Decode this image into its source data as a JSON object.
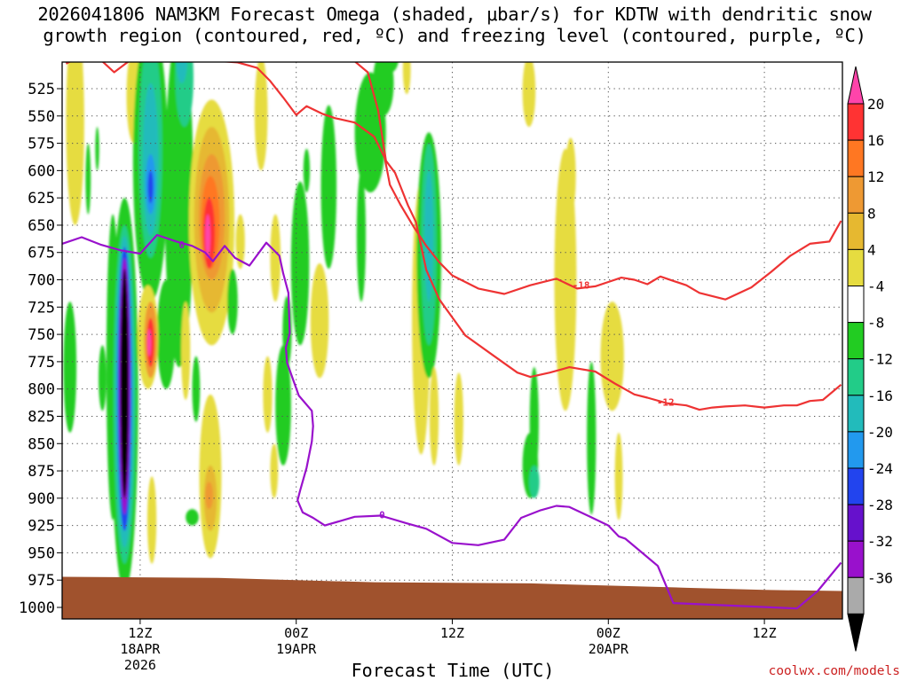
{
  "title_line1": "2026041806 NAM3KM Forecast Omega (shaded, μbar/s) for KDTW with dendritic snow",
  "title_line2": "growth region (contoured, red, ºC) and freezing level (contoured, purple, ºC)",
  "credit": "coolwx.com/models",
  "chart_data": {
    "type": "contour",
    "title": "2026041806 NAM3KM Forecast Omega (shaded, μbar/s) for KDTW with dendritic snow growth region (contoured, red, ºC) and freezing level (contoured, purple, ºC)",
    "xlabel": "Forecast Time (UTC)",
    "ylabel": "",
    "y_ticks": [
      525,
      550,
      575,
      600,
      625,
      650,
      675,
      700,
      725,
      750,
      775,
      800,
      825,
      850,
      875,
      900,
      925,
      950,
      975,
      1000
    ],
    "y_range_hpa": [
      1000,
      500
    ],
    "x_range_hours": [
      6,
      66
    ],
    "x_ticks": [
      {
        "hour": 12,
        "label": "12Z",
        "sub1": "18APR",
        "sub2": "2026"
      },
      {
        "hour": 24,
        "label": "00Z",
        "sub1": "19APR",
        "sub2": ""
      },
      {
        "hour": 36,
        "label": "12Z",
        "sub1": "",
        "sub2": ""
      },
      {
        "hour": 48,
        "label": "00Z",
        "sub1": "20APR",
        "sub2": ""
      },
      {
        "hour": 60,
        "label": "12Z",
        "sub1": "",
        "sub2": ""
      }
    ],
    "grid": true,
    "colorbar": {
      "labels": [
        "20",
        "16",
        "12",
        "8",
        "4",
        "-4",
        "-8",
        "-12",
        "-16",
        "-20",
        "-24",
        "-28",
        "-32",
        "-36"
      ],
      "colors": [
        "#ff44aa",
        "#ff3333",
        "#ff7722",
        "#ee9933",
        "#e6b830",
        "#e6dc40",
        "#ffffff",
        "#22cc22",
        "#22cc88",
        "#22bbbb",
        "#2299ee",
        "#2244ee",
        "#6611cc",
        "#9911cc",
        "#aaaaaa",
        "#000000"
      ]
    },
    "contour_labels": [
      {
        "text": "-18",
        "color": "#ee3333",
        "hour": 45.9,
        "hpa": 705
      },
      {
        "text": "-12",
        "color": "#ee3333",
        "hour": 52.4,
        "hpa": 812
      },
      {
        "text": "0",
        "color": "#9911cc",
        "hour": 15.2,
        "hpa": 668
      },
      {
        "text": "0",
        "color": "#9911cc",
        "hour": 30.6,
        "hpa": 915
      }
    ],
    "series": [
      {
        "name": "-18",
        "color": "#ee3333",
        "x": [
          6.3,
          7.5,
          9,
          10,
          12,
          14,
          15.5,
          17,
          18.3,
          19.5,
          21,
          22,
          23,
          24,
          24.8,
          26,
          27,
          28.5,
          30,
          30.8,
          31.2,
          32,
          33,
          34,
          35,
          36,
          38,
          40,
          42,
          44,
          45.6,
          47,
          48,
          49,
          50,
          51,
          52,
          53,
          54,
          55,
          57,
          59,
          60.5,
          62,
          63.5,
          65,
          65.9
        ],
        "y": [
          502,
          495,
          499,
          510,
          492,
          494,
          499,
          493,
          500,
          501,
          506,
          518,
          533,
          549,
          541,
          548,
          552,
          556,
          569,
          588,
          613,
          631,
          651,
          669,
          684,
          696,
          708,
          713,
          705,
          699,
          708,
          706,
          702,
          698,
          700,
          704,
          697,
          701,
          705,
          712,
          718,
          707,
          693,
          678,
          667,
          665,
          646
        ]
      },
      {
        "name": "-12",
        "color": "#ee3333",
        "x": [
          28.5,
          29.5,
          30.3,
          30.9,
          31.6,
          32,
          32.6,
          33.2,
          34,
          35,
          37,
          39,
          41,
          42,
          43.5,
          45,
          47,
          48.5,
          50,
          51,
          52.5,
          54,
          55,
          56,
          57,
          58.5,
          60,
          61.5,
          62.5,
          63.5,
          64.5,
          65.9
        ],
        "y": [
          500,
          510,
          545,
          591,
          602,
          614,
          632,
          647,
          691,
          718,
          751,
          768,
          785,
          789,
          785,
          780,
          784,
          795,
          805,
          808,
          813,
          815,
          819,
          817,
          816,
          815,
          817,
          815,
          815,
          811,
          810,
          796
        ]
      },
      {
        "name": "0",
        "color": "#9911cc",
        "x": [
          6,
          7.5,
          9,
          10.5,
          12,
          13.3,
          14.8,
          16,
          17,
          17.6,
          18.5,
          19.3,
          20.4,
          21.7,
          22.7,
          23,
          23.4,
          23.5,
          23.2,
          23.3,
          24.2,
          25.2,
          25.3,
          25.2,
          24.8,
          24.3,
          24.1,
          24.5,
          25.3,
          26.2,
          28.5,
          30.5,
          32.5,
          34,
          36,
          38,
          40,
          41.3,
          42.8,
          44,
          45,
          46.6,
          48,
          48.8,
          49.3,
          50,
          51.8,
          53,
          62.5,
          64.1,
          65.9
        ],
        "y": [
          667,
          661,
          668,
          673,
          676,
          659,
          665,
          669,
          675,
          683,
          669,
          680,
          687,
          666,
          678,
          694,
          712,
          749,
          762,
          776,
          806,
          820,
          834,
          848,
          872,
          893,
          902,
          913,
          918,
          925,
          917,
          916,
          923,
          928,
          941,
          943,
          938,
          918,
          911,
          907,
          908,
          917,
          925,
          935,
          937,
          944,
          962,
          996,
          1001,
          985,
          959
        ]
      }
    ]
  }
}
